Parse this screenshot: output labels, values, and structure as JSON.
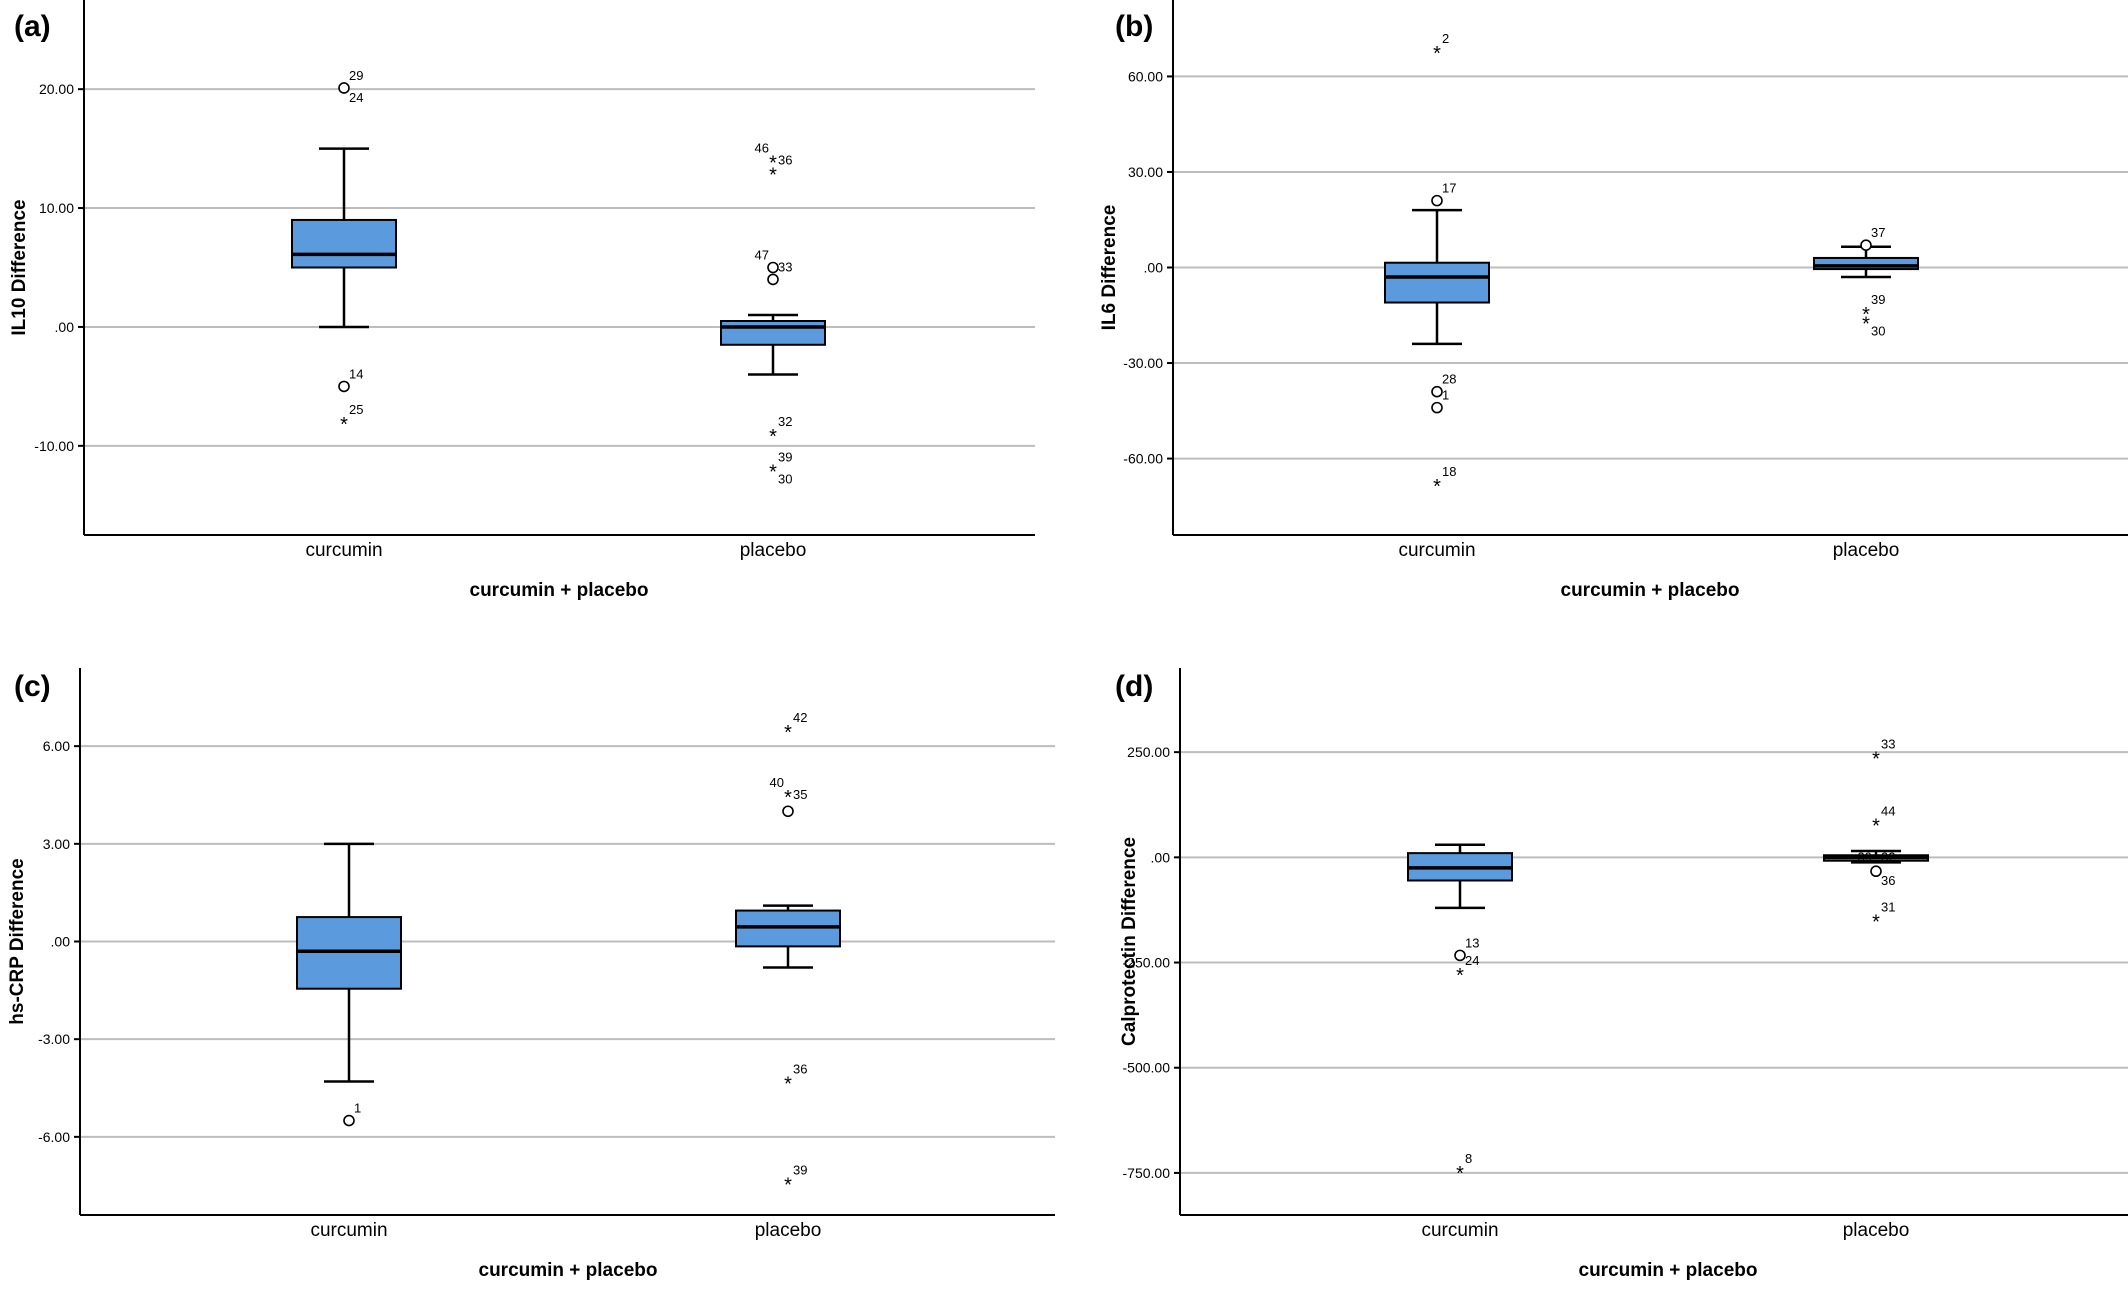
{
  "chart_data": [
    {
      "type": "box",
      "panel_label": "(a)",
      "xlabel": "curcumin + placebo",
      "ylabel": "IL10 Difference",
      "ylim": [
        -17.5,
        27.5
      ],
      "yticks": [
        20,
        10,
        0,
        -10
      ],
      "ytick_labels": [
        "20.00",
        "10.00",
        ".00",
        "-10.00"
      ],
      "grid": true,
      "categories": [
        "curcumin",
        "placebo"
      ],
      "boxes": [
        {
          "whisker_low": 0,
          "q1": 5,
          "median": 6.1,
          "q3": 9,
          "whisker_high": 15
        },
        {
          "whisker_low": -4,
          "q1": -1.5,
          "median": 0,
          "q3": 0.5,
          "whisker_high": 1
        }
      ],
      "outliers": [
        [
          {
            "value": 20.1,
            "symbol": "circle",
            "label": "29",
            "label_side": "right",
            "label_dy": -1
          },
          {
            "value": 20.1,
            "symbol": "none",
            "label": "24",
            "label_side": "right",
            "label_dy": 1
          },
          {
            "value": -5,
            "symbol": "circle",
            "label": "14",
            "label_side": "right",
            "label_dy": -1
          },
          {
            "value": -8,
            "symbol": "star",
            "label": "25",
            "label_side": "right",
            "label_dy": -1
          }
        ],
        [
          {
            "value": 14,
            "symbol": "star",
            "label": "46",
            "label_side": "left",
            "label_dy": -1
          },
          {
            "value": 13,
            "symbol": "star",
            "label": "36",
            "label_side": "right",
            "label_dy": -1
          },
          {
            "value": 5,
            "symbol": "circle",
            "label": "47",
            "label_side": "left",
            "label_dy": -1
          },
          {
            "value": 4,
            "symbol": "circle",
            "label": "33",
            "label_side": "right",
            "label_dy": -1
          },
          {
            "value": -9,
            "symbol": "star",
            "label": "32",
            "label_side": "right",
            "label_dy": -1
          },
          {
            "value": -12,
            "symbol": "star",
            "label": "39",
            "label_side": "right",
            "label_dy": -1
          },
          {
            "value": -12,
            "symbol": "none",
            "label": "30",
            "label_side": "right",
            "label_dy": 1
          }
        ]
      ]
    },
    {
      "type": "box",
      "panel_label": "(b)",
      "xlabel": "curcumin + placebo",
      "ylabel": "IL6 Difference",
      "ylim": [
        -84,
        84
      ],
      "yticks": [
        60,
        30,
        0,
        -30,
        -60
      ],
      "ytick_labels": [
        "60.00",
        "30.00",
        ".00",
        "-30.00",
        "-60.00"
      ],
      "grid": true,
      "categories": [
        "curcumin",
        "placebo"
      ],
      "boxes": [
        {
          "whisker_low": -24,
          "q1": -11,
          "median": -3,
          "q3": 1.5,
          "whisker_high": 18
        },
        {
          "whisker_low": -3,
          "q1": -0.5,
          "median": 0.5,
          "q3": 3,
          "whisker_high": 6.5
        }
      ],
      "outliers": [
        [
          {
            "value": 68,
            "symbol": "star",
            "label": "2",
            "label_side": "right",
            "label_dy": -1
          },
          {
            "value": 21,
            "symbol": "circle",
            "label": "17",
            "label_side": "right",
            "label_dy": -1
          },
          {
            "value": -39,
            "symbol": "circle",
            "label": "28",
            "label_side": "right",
            "label_dy": -1
          },
          {
            "value": -44,
            "symbol": "circle",
            "label": "1",
            "label_side": "right",
            "label_dy": -1
          },
          {
            "value": -68,
            "symbol": "star",
            "label": "18",
            "label_side": "right",
            "label_dy": -1
          }
        ],
        [
          {
            "value": 7,
            "symbol": "circle",
            "label": "37",
            "label_side": "right",
            "label_dy": -1
          },
          {
            "value": -14,
            "symbol": "star",
            "label": "39",
            "label_side": "right",
            "label_dy": -1
          },
          {
            "value": -17,
            "symbol": "star",
            "label": "30",
            "label_side": "right",
            "label_dy": 1
          }
        ]
      ]
    },
    {
      "type": "box",
      "panel_label": "(c)",
      "xlabel": "curcumin + placebo",
      "ylabel": "hs-CRP Difference",
      "ylim": [
        -8.4,
        8.4
      ],
      "yticks": [
        6,
        3,
        0,
        -3,
        -6
      ],
      "ytick_labels": [
        "6.00",
        "3.00",
        ".00",
        "-3.00",
        "-6.00"
      ],
      "grid": true,
      "categories": [
        "curcumin",
        "placebo"
      ],
      "boxes": [
        {
          "whisker_low": -4.3,
          "q1": -1.45,
          "median": -0.3,
          "q3": 0.75,
          "whisker_high": 3
        },
        {
          "whisker_low": -0.8,
          "q1": -0.15,
          "median": 0.45,
          "q3": 0.95,
          "whisker_high": 1.1
        }
      ],
      "outliers": [
        [
          {
            "value": -5.5,
            "symbol": "circle",
            "label": "1",
            "label_side": "right",
            "label_dy": -1
          }
        ],
        [
          {
            "value": 6.5,
            "symbol": "star",
            "label": "42",
            "label_side": "right",
            "label_dy": -1
          },
          {
            "value": 4.5,
            "symbol": "star",
            "label": "40",
            "label_side": "left",
            "label_dy": -1
          },
          {
            "value": 4.5,
            "symbol": "none",
            "label": "35",
            "label_side": "right",
            "label_dy": 0
          },
          {
            "value": 4,
            "symbol": "circle",
            "label": "",
            "label_side": "right",
            "label_dy": 0
          },
          {
            "value": -4.3,
            "symbol": "star",
            "label": "36",
            "label_side": "right",
            "label_dy": -1
          },
          {
            "value": -7.4,
            "symbol": "star",
            "label": "39",
            "label_side": "right",
            "label_dy": -1
          }
        ]
      ]
    },
    {
      "type": "box",
      "panel_label": "(d)",
      "xlabel": "curcumin + placebo",
      "ylabel": "Calprotectin Difference",
      "ylim": [
        -850,
        450
      ],
      "yticks": [
        250,
        0,
        -250,
        -500,
        -750
      ],
      "ytick_labels": [
        "250.00",
        ".00",
        "-250.00",
        "-500.00",
        "-750.00"
      ],
      "grid": true,
      "categories": [
        "curcumin",
        "placebo"
      ],
      "boxes": [
        {
          "whisker_low": -120,
          "q1": -55,
          "median": -25,
          "q3": 10,
          "whisker_high": 30
        },
        {
          "whisker_low": -12,
          "q1": -8,
          "median": 0,
          "q3": 5,
          "whisker_high": 15
        }
      ],
      "outliers": [
        [
          {
            "value": -233,
            "symbol": "circle",
            "label": "13",
            "label_side": "right",
            "label_dy": -1
          },
          {
            "value": -275,
            "symbol": "star",
            "label": "24",
            "label_side": "right",
            "label_dy": -1
          },
          {
            "value": -745,
            "symbol": "star",
            "label": "8",
            "label_side": "right",
            "label_dy": -1
          }
        ],
        [
          {
            "value": 240,
            "symbol": "star",
            "label": "33",
            "label_side": "right",
            "label_dy": -1
          },
          {
            "value": 80,
            "symbol": "star",
            "label": "44",
            "label_side": "right",
            "label_dy": -1
          },
          {
            "value": 0,
            "symbol": "none",
            "label": "39",
            "label_side": "left",
            "label_dy": 0
          },
          {
            "value": 0,
            "symbol": "none",
            "label": "32",
            "label_side": "right",
            "label_dy": 0
          },
          {
            "value": -33,
            "symbol": "circle",
            "label": "36",
            "label_side": "right",
            "label_dy": 1
          },
          {
            "value": -148,
            "symbol": "star",
            "label": "31",
            "label_side": "right",
            "label_dy": -1
          }
        ]
      ]
    }
  ],
  "colors": {
    "box_fill": "#5b9bdd",
    "box_stroke": "#000000",
    "grid": "#bdbdbd",
    "axis": "#000000",
    "text": "#000000"
  }
}
